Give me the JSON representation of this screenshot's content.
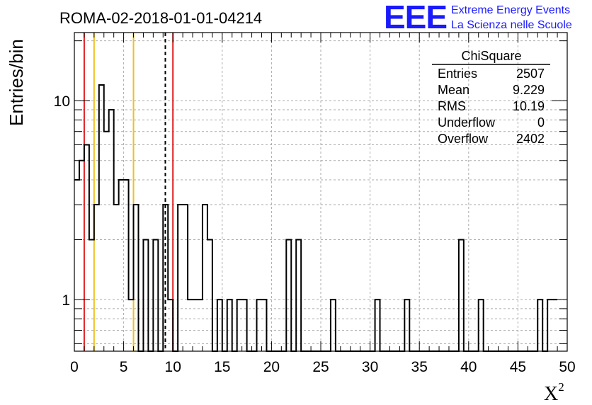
{
  "chart_data": {
    "type": "bar",
    "title": "ROMA-02-2018-01-01-04214",
    "xlabel": "X",
    "xlabel_sup": "2",
    "ylabel": "Entries/bin",
    "xlim": [
      0,
      50
    ],
    "ylim": [
      0.55,
      22
    ],
    "y_scale": "log",
    "grid": true,
    "bin_width": 0.5,
    "bins_start": 0,
    "counts": [
      4,
      5,
      6,
      2,
      3,
      12,
      7,
      9,
      3,
      4,
      4,
      1,
      3,
      0,
      2,
      0,
      2,
      0,
      3,
      1,
      0,
      3,
      3,
      1,
      1,
      1,
      3,
      2,
      0,
      1,
      0,
      1,
      0,
      1,
      1,
      0,
      0,
      1,
      1,
      0,
      0,
      0,
      0,
      2,
      0,
      2,
      0,
      0,
      0,
      0,
      0,
      0,
      1,
      0,
      0,
      0,
      0,
      0,
      0,
      0,
      0,
      1,
      0,
      0,
      0,
      0,
      0,
      1,
      0,
      0,
      0,
      0,
      0,
      0,
      0,
      0,
      0,
      0,
      2,
      0,
      0,
      0,
      1,
      0,
      0,
      0,
      0,
      0,
      0,
      0,
      0,
      0,
      0,
      0,
      1,
      0,
      1,
      1
    ],
    "x_ticks": [
      "0",
      "5",
      "10",
      "15",
      "20",
      "25",
      "30",
      "35",
      "40",
      "45",
      "50"
    ],
    "y_ticks": [
      "1",
      "10"
    ],
    "vertical_lines": [
      {
        "x": 1.0,
        "color": "#e02020",
        "style": "solid"
      },
      {
        "x": 2.0,
        "color": "#f0c020",
        "style": "solid"
      },
      {
        "x": 6.0,
        "color": "#f0c020",
        "style": "solid"
      },
      {
        "x": 9.229,
        "color": "#000000",
        "style": "dashed"
      },
      {
        "x": 10.0,
        "color": "#e02020",
        "style": "solid"
      }
    ],
    "stats": {
      "title": "ChiSquare",
      "rows": [
        {
          "label": "Entries",
          "value": "2507"
        },
        {
          "label": "Mean",
          "value": "9.229"
        },
        {
          "label": "RMS",
          "value": "10.19"
        },
        {
          "label": "Underflow",
          "value": "0"
        },
        {
          "label": "Overflow",
          "value": "2402"
        }
      ]
    }
  },
  "logo": {
    "mark": "EEE",
    "line1": "Extreme Energy Events",
    "line2": "La Scienza nelle Scuole",
    "color": "#1a1aff"
  }
}
